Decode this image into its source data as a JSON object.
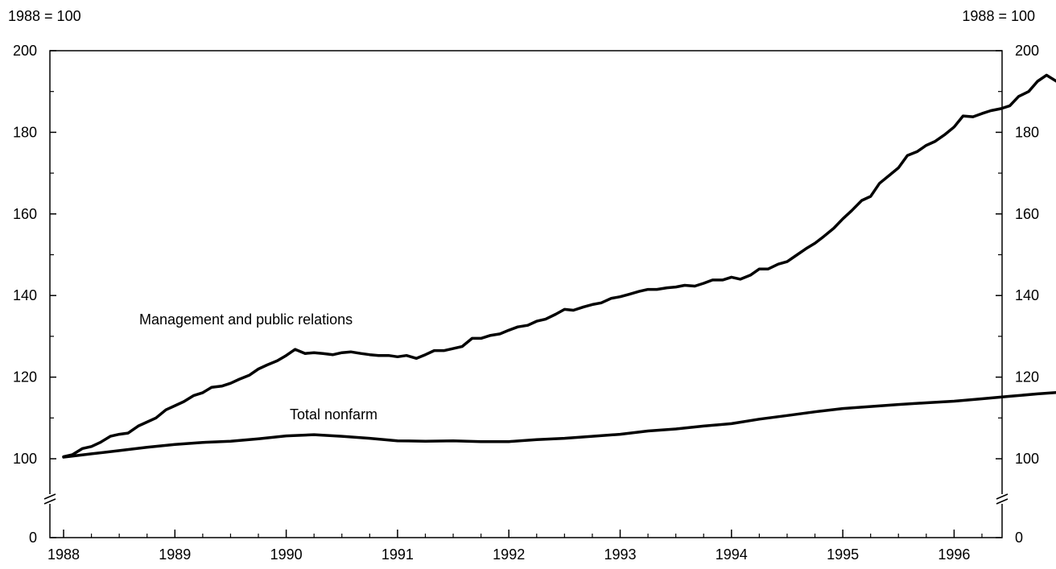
{
  "chart_data": {
    "type": "line",
    "unit_label_left": "1988 = 100",
    "unit_label_right": "1988 = 100",
    "y_ticks": [
      0,
      100,
      120,
      140,
      160,
      180,
      200
    ],
    "x_ticks": [
      "1988",
      "1989",
      "1990",
      "1991",
      "1992",
      "1993",
      "1994",
      "1995",
      "1996"
    ],
    "ylim": [
      0,
      200
    ],
    "y_axis_break": true,
    "grid": false,
    "series": [
      {
        "name": "Management and public relations",
        "points": [
          [
            1988.0,
            100.5
          ],
          [
            1988.08,
            101.0
          ],
          [
            1988.17,
            102.5
          ],
          [
            1988.25,
            103.0
          ],
          [
            1988.33,
            104.0
          ],
          [
            1988.42,
            105.5
          ],
          [
            1988.5,
            106.0
          ],
          [
            1988.58,
            106.3
          ],
          [
            1988.67,
            108.0
          ],
          [
            1988.75,
            109.0
          ],
          [
            1988.83,
            110.0
          ],
          [
            1988.92,
            112.0
          ],
          [
            1989.0,
            113.0
          ],
          [
            1989.08,
            114.0
          ],
          [
            1989.17,
            115.5
          ],
          [
            1989.25,
            116.2
          ],
          [
            1989.33,
            117.5
          ],
          [
            1989.42,
            117.8
          ],
          [
            1989.5,
            118.5
          ],
          [
            1989.58,
            119.5
          ],
          [
            1989.67,
            120.5
          ],
          [
            1989.75,
            122.0
          ],
          [
            1989.83,
            123.0
          ],
          [
            1989.92,
            124.0
          ],
          [
            1990.0,
            125.3
          ],
          [
            1990.08,
            126.8
          ],
          [
            1990.17,
            125.8
          ],
          [
            1990.25,
            126.0
          ],
          [
            1990.33,
            125.8
          ],
          [
            1990.42,
            125.5
          ],
          [
            1990.5,
            126.0
          ],
          [
            1990.58,
            126.2
          ],
          [
            1990.67,
            125.8
          ],
          [
            1990.75,
            125.5
          ],
          [
            1990.83,
            125.3
          ],
          [
            1990.92,
            125.3
          ],
          [
            1991.0,
            125.0
          ],
          [
            1991.08,
            125.3
          ],
          [
            1991.17,
            124.6
          ],
          [
            1991.25,
            125.5
          ],
          [
            1991.33,
            126.5
          ],
          [
            1991.42,
            126.5
          ],
          [
            1991.5,
            127.0
          ],
          [
            1991.58,
            127.5
          ],
          [
            1991.67,
            129.5
          ],
          [
            1991.75,
            129.5
          ],
          [
            1991.83,
            130.2
          ],
          [
            1991.92,
            130.6
          ],
          [
            1992.0,
            131.5
          ],
          [
            1992.08,
            132.3
          ],
          [
            1992.17,
            132.7
          ],
          [
            1992.25,
            133.7
          ],
          [
            1992.33,
            134.2
          ],
          [
            1992.42,
            135.4
          ],
          [
            1992.5,
            136.6
          ],
          [
            1992.58,
            136.4
          ],
          [
            1992.67,
            137.2
          ],
          [
            1992.75,
            137.8
          ],
          [
            1992.83,
            138.2
          ],
          [
            1992.92,
            139.3
          ],
          [
            1993.0,
            139.7
          ],
          [
            1993.08,
            140.3
          ],
          [
            1993.17,
            141.0
          ],
          [
            1993.25,
            141.5
          ],
          [
            1993.33,
            141.5
          ],
          [
            1993.42,
            141.9
          ],
          [
            1993.5,
            142.1
          ],
          [
            1993.58,
            142.5
          ],
          [
            1993.67,
            142.3
          ],
          [
            1993.75,
            143.0
          ],
          [
            1993.83,
            143.8
          ],
          [
            1993.92,
            143.8
          ],
          [
            1994.0,
            144.5
          ],
          [
            1994.08,
            144.0
          ],
          [
            1994.17,
            145.0
          ],
          [
            1994.25,
            146.5
          ],
          [
            1994.33,
            146.5
          ],
          [
            1994.42,
            147.7
          ],
          [
            1994.5,
            148.3
          ],
          [
            1994.58,
            149.8
          ],
          [
            1994.67,
            151.5
          ],
          [
            1994.75,
            152.8
          ],
          [
            1994.83,
            154.5
          ],
          [
            1994.92,
            156.5
          ],
          [
            1995.0,
            158.8
          ],
          [
            1995.08,
            160.8
          ],
          [
            1995.17,
            163.3
          ],
          [
            1995.25,
            164.3
          ],
          [
            1995.33,
            167.5
          ],
          [
            1995.42,
            169.5
          ],
          [
            1995.5,
            171.3
          ],
          [
            1995.58,
            174.3
          ],
          [
            1995.67,
            175.3
          ],
          [
            1995.75,
            176.8
          ],
          [
            1995.83,
            177.8
          ],
          [
            1995.92,
            179.5
          ],
          [
            1996.0,
            181.3
          ],
          [
            1996.08,
            184.0
          ],
          [
            1996.17,
            183.8
          ],
          [
            1996.25,
            184.6
          ],
          [
            1996.33,
            185.3
          ],
          [
            1996.42,
            185.8
          ],
          [
            1996.5,
            186.5
          ],
          [
            1996.58,
            188.8
          ],
          [
            1996.67,
            190.0
          ],
          [
            1996.75,
            192.5
          ],
          [
            1996.83,
            194.0
          ],
          [
            1996.92,
            192.5
          ],
          [
            1997.0,
            194.0
          ]
        ]
      },
      {
        "name": "Total nonfarm",
        "points": [
          [
            1988.0,
            100.4
          ],
          [
            1988.25,
            101.2
          ],
          [
            1988.5,
            102.0
          ],
          [
            1988.75,
            102.8
          ],
          [
            1989.0,
            103.5
          ],
          [
            1989.25,
            104.0
          ],
          [
            1989.5,
            104.3
          ],
          [
            1989.75,
            104.9
          ],
          [
            1990.0,
            105.6
          ],
          [
            1990.25,
            105.9
          ],
          [
            1990.5,
            105.5
          ],
          [
            1990.75,
            105.0
          ],
          [
            1991.0,
            104.4
          ],
          [
            1991.25,
            104.3
          ],
          [
            1991.5,
            104.4
          ],
          [
            1991.75,
            104.2
          ],
          [
            1992.0,
            104.2
          ],
          [
            1992.25,
            104.7
          ],
          [
            1992.5,
            105.0
          ],
          [
            1992.75,
            105.5
          ],
          [
            1993.0,
            106.0
          ],
          [
            1993.25,
            106.8
          ],
          [
            1993.5,
            107.3
          ],
          [
            1993.75,
            108.0
          ],
          [
            1994.0,
            108.6
          ],
          [
            1994.25,
            109.7
          ],
          [
            1994.5,
            110.6
          ],
          [
            1994.75,
            111.5
          ],
          [
            1995.0,
            112.3
          ],
          [
            1995.25,
            112.8
          ],
          [
            1995.5,
            113.3
          ],
          [
            1995.75,
            113.7
          ],
          [
            1996.0,
            114.1
          ],
          [
            1996.25,
            114.7
          ],
          [
            1996.5,
            115.3
          ],
          [
            1996.75,
            115.9
          ],
          [
            1997.0,
            116.4
          ],
          [
            1997.08,
            116.2
          ],
          [
            1997.17,
            116.5
          ]
        ]
      }
    ]
  },
  "labels": {
    "management": "Management and public relations",
    "nonfarm": "Total nonfarm"
  }
}
